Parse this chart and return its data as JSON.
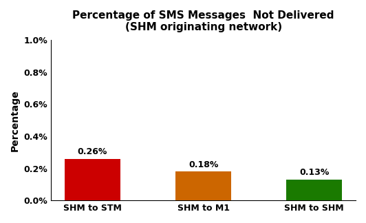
{
  "title_line1": "Percentage of SMS Messages  Not Delivered",
  "title_line2": "(SHM originating network)",
  "categories": [
    "SHM to STM",
    "SHM to M1",
    "SHM to SHM"
  ],
  "values": [
    0.0026,
    0.0018,
    0.0013
  ],
  "bar_colors": [
    "#cc0000",
    "#cc6600",
    "#1a7a00"
  ],
  "label_texts": [
    "0.26%",
    "0.18%",
    "0.13%"
  ],
  "ylabel": "Percentage",
  "ylim": [
    0,
    0.01
  ],
  "yticks": [
    0.0,
    0.002,
    0.004,
    0.006,
    0.008,
    0.01
  ],
  "ytick_labels": [
    "0.0%",
    "0.2%",
    "0.4%",
    "0.6%",
    "0.8%",
    "1.0%"
  ],
  "title_fontsize": 11,
  "label_fontsize": 9,
  "axis_fontsize": 10,
  "tick_fontsize": 9,
  "background_color": "#ffffff",
  "bar_width": 0.5
}
